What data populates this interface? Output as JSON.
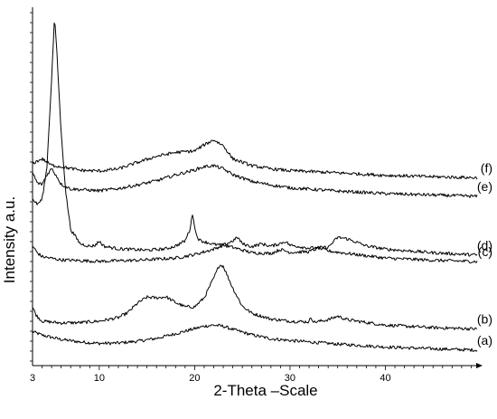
{
  "chart_data": {
    "type": "line",
    "xlabel": "2-Theta –Scale",
    "ylabel": "Intensity a.u.",
    "xlim": [
      3,
      50
    ],
    "ylim": [
      0,
      100
    ],
    "x_ticks": [
      3,
      10,
      20,
      30,
      40
    ],
    "grid": false,
    "legend": "none",
    "line_color": "#000000",
    "series": [
      {
        "name": "(a)",
        "points": [
          [
            3,
            9.5
          ],
          [
            4,
            8.5
          ],
          [
            6,
            7.3
          ],
          [
            8,
            6.6
          ],
          [
            10,
            6.2
          ],
          [
            12,
            6.3
          ],
          [
            14,
            6.8
          ],
          [
            16,
            7.6
          ],
          [
            18,
            8.9
          ],
          [
            20,
            10.3
          ],
          [
            21,
            11.0
          ],
          [
            22,
            11.3
          ],
          [
            23,
            11.0
          ],
          [
            24,
            10.1
          ],
          [
            26,
            8.6
          ],
          [
            28,
            7.5
          ],
          [
            30,
            7.0
          ],
          [
            35,
            6.0
          ],
          [
            40,
            5.2
          ],
          [
            45,
            4.7
          ],
          [
            50,
            4.3
          ]
        ]
      },
      {
        "name": "(b)",
        "points": [
          [
            3,
            16.3
          ],
          [
            3.4,
            14.0
          ],
          [
            4,
            12.4
          ],
          [
            6,
            11.9
          ],
          [
            8,
            12.0
          ],
          [
            10,
            12.4
          ],
          [
            12,
            13.4
          ],
          [
            13,
            14.8
          ],
          [
            14,
            17.4
          ],
          [
            15,
            19.1
          ],
          [
            16,
            18.9
          ],
          [
            17,
            19.2
          ],
          [
            18,
            17.6
          ],
          [
            19,
            16.4
          ],
          [
            20,
            16.4
          ],
          [
            21,
            18.9
          ],
          [
            22,
            24.4
          ],
          [
            22.6,
            28.1
          ],
          [
            23,
            27.8
          ],
          [
            24,
            21.6
          ],
          [
            25,
            16.6
          ],
          [
            26,
            14.6
          ],
          [
            28,
            13.0
          ],
          [
            30,
            12.4
          ],
          [
            32,
            12.2
          ],
          [
            32.2,
            13.6
          ],
          [
            32.5,
            12.1
          ],
          [
            34,
            12.8
          ],
          [
            35,
            13.8
          ],
          [
            36,
            12.8
          ],
          [
            40,
            11.3
          ],
          [
            45,
            10.6
          ],
          [
            50,
            10.2
          ]
        ]
      },
      {
        "name": "(c)",
        "points": [
          [
            3,
            33.4
          ],
          [
            3.5,
            31.5
          ],
          [
            4,
            30.4
          ],
          [
            6,
            29.5
          ],
          [
            10,
            29.1
          ],
          [
            14,
            29.4
          ],
          [
            18,
            30.0
          ],
          [
            20,
            31.0
          ],
          [
            22,
            32.5
          ],
          [
            23,
            33.6
          ],
          [
            24,
            33.0
          ],
          [
            26,
            31.5
          ],
          [
            28,
            31.3
          ],
          [
            29,
            32.4
          ],
          [
            30,
            31.6
          ],
          [
            32,
            31.8
          ],
          [
            33,
            32.8
          ],
          [
            34,
            32.0
          ],
          [
            36,
            31.3
          ],
          [
            40,
            30.0
          ],
          [
            45,
            29.4
          ],
          [
            50,
            29.0
          ]
        ]
      },
      {
        "name": "(d)",
        "points": [
          [
            3,
            46.5
          ],
          [
            3.5,
            45.0
          ],
          [
            4,
            46.4
          ],
          [
            4.5,
            55.0
          ],
          [
            5,
            80.0
          ],
          [
            5.3,
            97.0
          ],
          [
            5.5,
            90.0
          ],
          [
            6,
            65.0
          ],
          [
            6.5,
            48.0
          ],
          [
            7,
            38.0
          ],
          [
            8,
            34.0
          ],
          [
            9,
            33.3
          ],
          [
            9.5,
            33.5
          ],
          [
            10,
            34.7
          ],
          [
            10.5,
            33.3
          ],
          [
            12,
            32.6
          ],
          [
            15,
            32.2
          ],
          [
            17,
            32.6
          ],
          [
            18,
            33.4
          ],
          [
            19,
            34.8
          ],
          [
            19.5,
            38.0
          ],
          [
            19.8,
            42.6
          ],
          [
            20.1,
            37.0
          ],
          [
            20.5,
            35.0
          ],
          [
            22,
            33.8
          ],
          [
            23,
            33.6
          ],
          [
            24,
            34.8
          ],
          [
            24.5,
            35.8
          ],
          [
            25,
            34.0
          ],
          [
            26,
            33.2
          ],
          [
            27,
            34.0
          ],
          [
            28,
            33.3
          ],
          [
            29,
            34.1
          ],
          [
            29.5,
            34.7
          ],
          [
            30,
            33.6
          ],
          [
            32,
            32.8
          ],
          [
            34,
            33.0
          ],
          [
            35,
            35.8
          ],
          [
            36,
            35.4
          ],
          [
            37,
            34.4
          ],
          [
            38,
            33.4
          ],
          [
            40,
            32.5
          ],
          [
            45,
            31.5
          ],
          [
            50,
            30.8
          ]
        ]
      },
      {
        "name": "(e)",
        "points": [
          [
            3,
            53.9
          ],
          [
            3.5,
            50.9
          ],
          [
            4,
            50.6
          ],
          [
            4.5,
            53.2
          ],
          [
            5,
            55.0
          ],
          [
            5.5,
            53.0
          ],
          [
            6,
            50.6
          ],
          [
            7,
            49.3
          ],
          [
            10,
            48.8
          ],
          [
            12,
            49.4
          ],
          [
            14,
            50.4
          ],
          [
            16,
            51.6
          ],
          [
            18,
            53.2
          ],
          [
            20,
            54.6
          ],
          [
            21,
            55.5
          ],
          [
            22,
            55.8
          ],
          [
            23,
            54.9
          ],
          [
            24,
            53.3
          ],
          [
            26,
            51.4
          ],
          [
            28,
            50.4
          ],
          [
            30,
            49.6
          ],
          [
            35,
            48.7
          ],
          [
            40,
            48.0
          ],
          [
            45,
            47.6
          ],
          [
            50,
            47.2
          ]
        ]
      },
      {
        "name": "(f)",
        "points": [
          [
            3,
            56.4
          ],
          [
            4,
            57.7
          ],
          [
            5,
            55.9
          ],
          [
            6,
            55.5
          ],
          [
            8,
            54.5
          ],
          [
            10,
            54.3
          ],
          [
            12,
            54.9
          ],
          [
            14,
            56.7
          ],
          [
            16,
            58.4
          ],
          [
            18,
            59.5
          ],
          [
            20,
            59.9
          ],
          [
            21,
            61.6
          ],
          [
            22,
            63.0
          ],
          [
            23,
            61.4
          ],
          [
            24,
            57.7
          ],
          [
            26,
            55.8
          ],
          [
            28,
            54.9
          ],
          [
            30,
            54.4
          ],
          [
            35,
            53.8
          ],
          [
            40,
            53.1
          ],
          [
            45,
            52.7
          ],
          [
            50,
            52.4
          ]
        ]
      }
    ]
  }
}
